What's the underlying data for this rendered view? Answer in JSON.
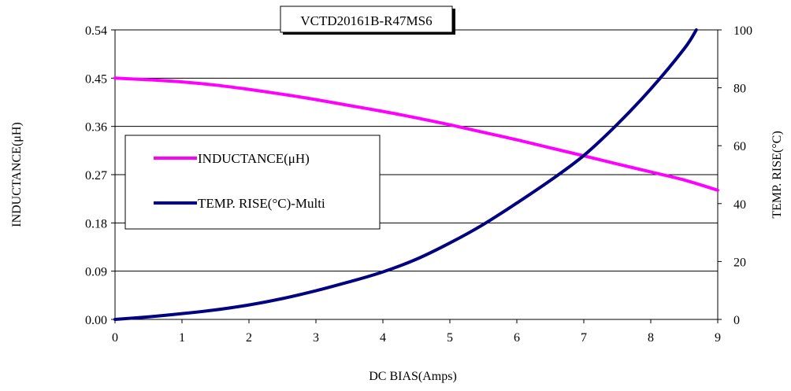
{
  "chart_data": {
    "type": "line",
    "title": "VCTD20161B-R47MS6",
    "xlabel": "DC BIAS(Amps)",
    "ylabel_left": "INDUCTANCE(μH)",
    "ylabel_right": "TEMP. RISE(°C)",
    "xlim": [
      0,
      9
    ],
    "ylim_left": [
      0,
      0.54
    ],
    "ylim_right": [
      0,
      100
    ],
    "x_ticks": [
      "0",
      "1",
      "2",
      "3",
      "4",
      "5",
      "6",
      "7",
      "8",
      "9"
    ],
    "y_left_ticks": [
      "0.00",
      "0.09",
      "0.18",
      "0.27",
      "0.36",
      "0.45",
      "0.54"
    ],
    "y_right_ticks": [
      "0",
      "20",
      "40",
      "60",
      "80",
      "100"
    ],
    "grid": "horizontal",
    "legend_position": "center-left",
    "series": [
      {
        "name": "INDUCTANCE(μH)",
        "axis": "left",
        "color": "#ff00ff",
        "x": [
          0,
          0.5,
          1,
          1.5,
          2,
          2.5,
          3,
          3.5,
          4,
          4.5,
          5,
          5.5,
          6,
          6.5,
          7,
          7.5,
          8,
          8.5,
          9
        ],
        "y": [
          0.45,
          0.447,
          0.443,
          0.437,
          0.429,
          0.42,
          0.41,
          0.399,
          0.388,
          0.376,
          0.363,
          0.349,
          0.335,
          0.32,
          0.305,
          0.29,
          0.275,
          0.26,
          0.241
        ]
      },
      {
        "name": "TEMP. RISE(°C)-Multi",
        "axis": "right",
        "color": "#000080",
        "x": [
          0,
          0.5,
          1,
          1.5,
          2,
          2.5,
          3,
          3.5,
          4,
          4.5,
          5,
          5.5,
          6,
          6.5,
          7,
          7.5,
          8,
          8.5,
          8.68
        ],
        "y": [
          0,
          0.9,
          2,
          3.3,
          5,
          7.2,
          9.9,
          13,
          16.4,
          20.8,
          26.4,
          32.8,
          40.2,
          48,
          56.6,
          67.4,
          79.6,
          93.5,
          100
        ]
      }
    ]
  }
}
